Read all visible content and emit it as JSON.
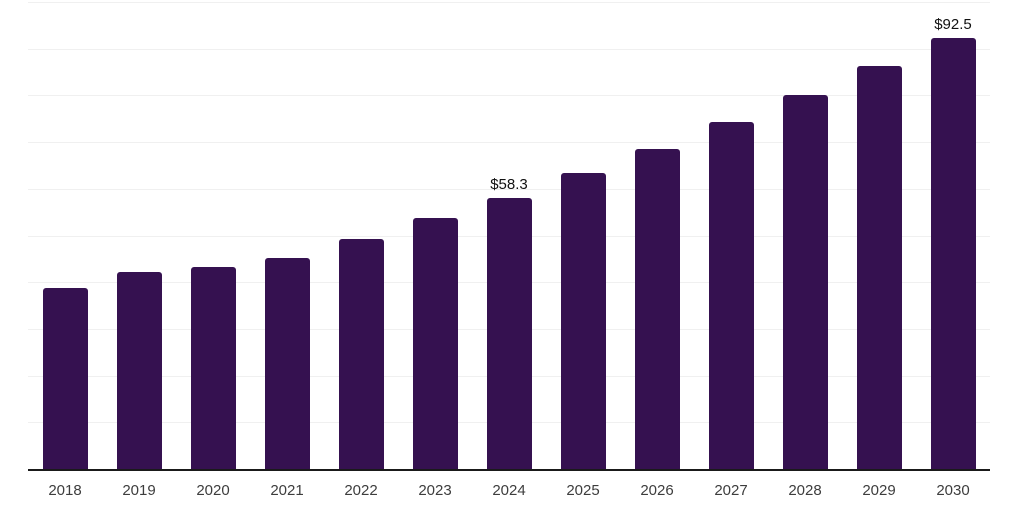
{
  "chart": {
    "background": "#ffffff",
    "bar_color": "#351150",
    "grid_color": "#f0f0f0",
    "axis_color": "#1a1a1a",
    "tick_label_color": "#3d3d3d",
    "data_label_color": "#111111"
  },
  "chart_data": {
    "type": "bar",
    "title": "",
    "xlabel": "",
    "ylabel": "",
    "categories": [
      "2018",
      "2019",
      "2020",
      "2021",
      "2022",
      "2023",
      "2024",
      "2025",
      "2026",
      "2027",
      "2028",
      "2029",
      "2030"
    ],
    "values": [
      39.0,
      42.4,
      43.4,
      45.3,
      49.4,
      53.9,
      58.3,
      63.5,
      68.7,
      74.5,
      80.4,
      86.5,
      92.5
    ],
    "data_labels": [
      "",
      "",
      "",
      "",
      "",
      "",
      "$58.3",
      "",
      "",
      "",
      "",
      "",
      "$92.5"
    ],
    "ylim": [
      0,
      100
    ],
    "grid_step": 10,
    "grid": "horizontal",
    "legend_position": "none"
  }
}
